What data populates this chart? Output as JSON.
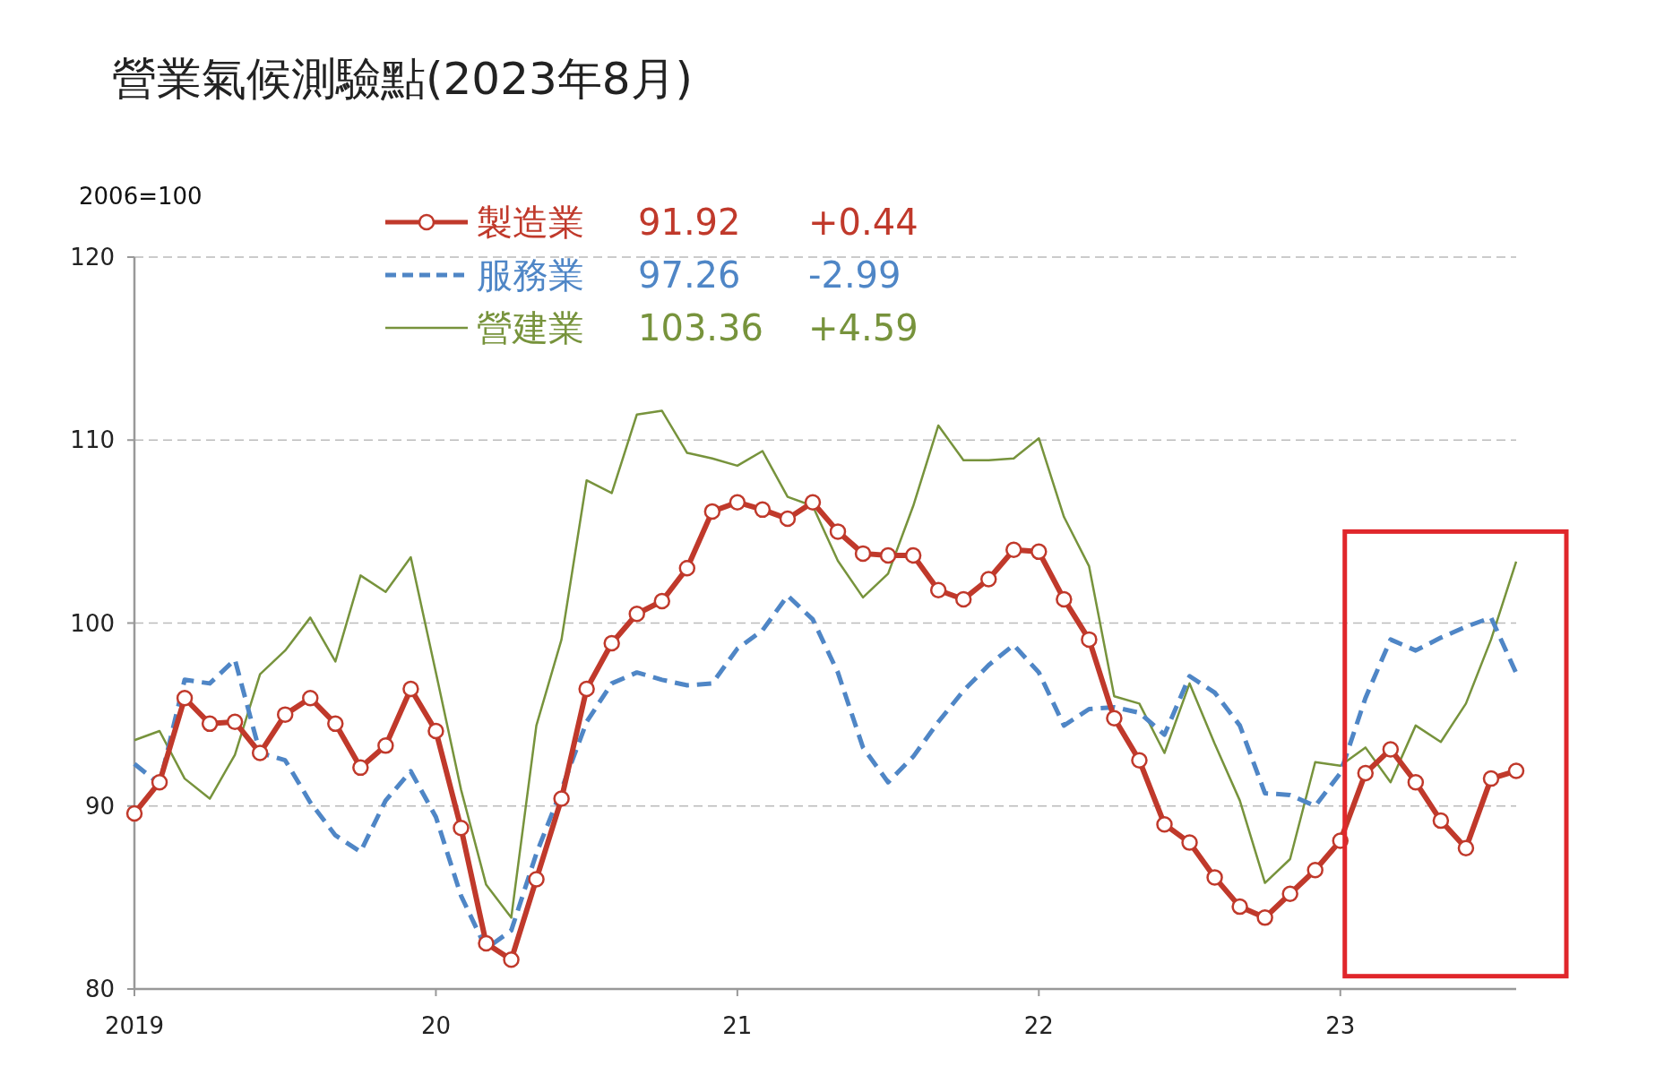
{
  "chart_data": {
    "type": "line",
    "title": "營業氣候測驗點(2023年8月)",
    "ylabel": "2006=100",
    "x": [
      "2019-01",
      "2019-02",
      "2019-03",
      "2019-04",
      "2019-05",
      "2019-06",
      "2019-07",
      "2019-08",
      "2019-09",
      "2019-10",
      "2019-11",
      "2019-12",
      "2020-01",
      "2020-02",
      "2020-03",
      "2020-04",
      "2020-05",
      "2020-06",
      "2020-07",
      "2020-08",
      "2020-09",
      "2020-10",
      "2020-11",
      "2020-12",
      "2021-01",
      "2021-02",
      "2021-03",
      "2021-04",
      "2021-05",
      "2021-06",
      "2021-07",
      "2021-08",
      "2021-09",
      "2021-10",
      "2021-11",
      "2021-12",
      "2022-01",
      "2022-02",
      "2022-03",
      "2022-04",
      "2022-05",
      "2022-06",
      "2022-07",
      "2022-08",
      "2022-09",
      "2022-10",
      "2022-11",
      "2022-12",
      "2023-01",
      "2023-02",
      "2023-03",
      "2023-04",
      "2023-05",
      "2023-06",
      "2023-07",
      "2023-08"
    ],
    "series": [
      {
        "name": "製造業",
        "color": "#c0392b",
        "marker": "circle",
        "line_style": "solid",
        "values": [
          89.6,
          91.3,
          95.9,
          94.5,
          94.6,
          92.9,
          95.0,
          95.9,
          94.5,
          92.1,
          93.3,
          96.4,
          94.1,
          88.8,
          82.5,
          81.6,
          86.0,
          90.4,
          96.4,
          98.9,
          100.5,
          101.2,
          103.0,
          106.1,
          106.6,
          106.2,
          105.7,
          106.6,
          105.0,
          103.8,
          103.7,
          103.7,
          101.8,
          101.3,
          102.4,
          104.0,
          103.9,
          101.3,
          99.1,
          94.8,
          92.5,
          89.0,
          88.0,
          86.1,
          84.5,
          83.9,
          85.2,
          86.5,
          88.1,
          91.8,
          93.1,
          91.3,
          89.2,
          87.7,
          91.5,
          91.92
        ]
      },
      {
        "name": "服務業",
        "color": "#4f86c6",
        "marker": "none",
        "line_style": "dashed",
        "values": [
          92.3,
          91.2,
          96.9,
          96.7,
          98.0,
          92.9,
          92.5,
          90.2,
          88.4,
          87.5,
          90.3,
          91.9,
          89.4,
          85.1,
          82.2,
          83.2,
          87.4,
          90.9,
          94.6,
          96.7,
          97.3,
          96.9,
          96.6,
          96.7,
          98.6,
          99.6,
          101.5,
          100.2,
          97.3,
          93.2,
          91.3,
          92.7,
          94.6,
          96.3,
          97.7,
          98.8,
          97.3,
          94.4,
          95.3,
          95.4,
          95.1,
          93.9,
          97.1,
          96.2,
          94.4,
          90.7,
          90.6,
          90.0,
          91.8,
          95.9,
          99.1,
          98.5,
          99.2,
          99.8,
          100.3,
          97.26
        ]
      },
      {
        "name": "營建業",
        "color": "#77933c",
        "marker": "none",
        "line_style": "solid",
        "values": [
          93.6,
          94.1,
          91.5,
          90.4,
          92.8,
          97.2,
          98.5,
          100.3,
          97.9,
          102.6,
          101.7,
          103.6,
          97.3,
          90.9,
          85.7,
          83.9,
          94.4,
          99.1,
          107.8,
          107.1,
          111.4,
          111.6,
          109.3,
          109.0,
          108.6,
          109.4,
          106.9,
          106.4,
          103.4,
          101.4,
          102.7,
          106.4,
          110.8,
          108.9,
          108.9,
          109.0,
          110.1,
          105.8,
          103.1,
          96.0,
          95.6,
          92.9,
          96.7,
          93.4,
          90.3,
          85.8,
          87.1,
          92.4,
          92.2,
          93.2,
          91.3,
          94.4,
          93.5,
          95.6,
          99.1,
          103.36
        ]
      }
    ],
    "annotations": [
      "91.92",
      "+0.44",
      "97.26",
      "-2.99",
      "103.36",
      "+4.59"
    ],
    "xlim": [
      "2019-01",
      "2023-08"
    ],
    "xticks": [
      {
        "value": "2019-01",
        "label": "2019"
      },
      {
        "value": "2020-01",
        "label": "20"
      },
      {
        "value": "2021-01",
        "label": "21"
      },
      {
        "value": "2022-01",
        "label": "22"
      },
      {
        "value": "2023-01",
        "label": "23"
      }
    ],
    "ylim": [
      80,
      120
    ],
    "yticks": [
      80,
      90,
      100,
      110,
      120
    ],
    "grid": "y",
    "legend": "top left"
  }
}
